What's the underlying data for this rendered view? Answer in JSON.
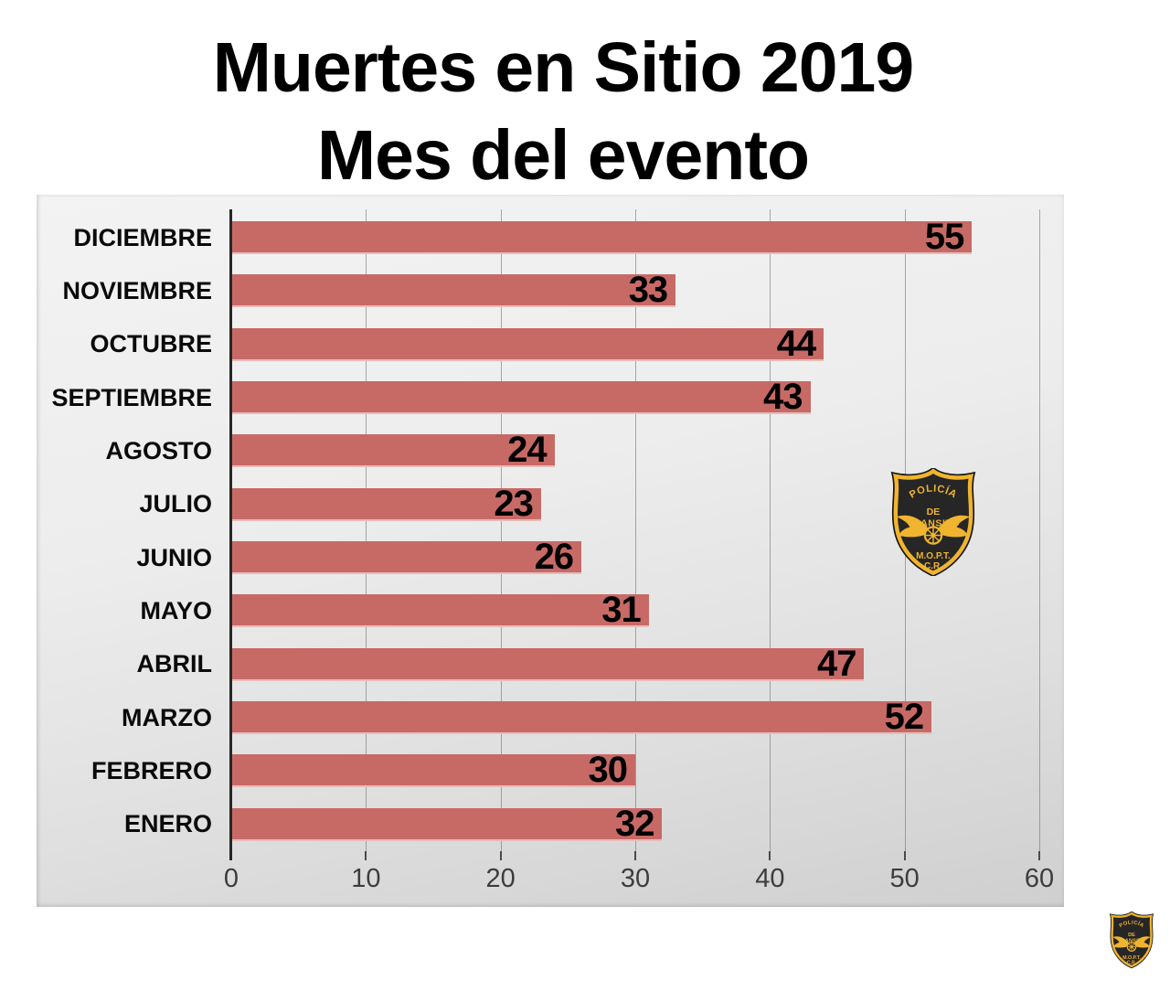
{
  "title": {
    "line1": "Muertes en Sitio 2019",
    "line2": "Mes del evento"
  },
  "chart_data": {
    "type": "bar",
    "orientation": "horizontal",
    "order": "top-to-bottom",
    "title": "Muertes en Sitio 2019 — Mes del evento",
    "categories": [
      "DICIEMBRE",
      "NOVIEMBRE",
      "OCTUBRE",
      "SEPTIEMBRE",
      "AGOSTO",
      "JULIO",
      "JUNIO",
      "MAYO",
      "ABRIL",
      "MARZO",
      "FEBRERO",
      "ENERO"
    ],
    "values": [
      55,
      33,
      44,
      43,
      24,
      23,
      26,
      31,
      47,
      52,
      30,
      32
    ],
    "x_ticks": [
      0,
      10,
      20,
      30,
      40,
      50,
      60
    ],
    "xlim": [
      0,
      60
    ],
    "grid": true,
    "value_labels": "inside-end",
    "bar_color": "#c76a66",
    "axis_label_color": "#3d3d3d"
  },
  "badge": {
    "arc_text": "POLICÍA",
    "line_de": "DE",
    "line_transito": "TRANSITO",
    "line_mopt": "M.O.P.T.",
    "line_cr": "C.R.",
    "colors": {
      "gold": "#f0b42f",
      "black": "#262626"
    }
  }
}
